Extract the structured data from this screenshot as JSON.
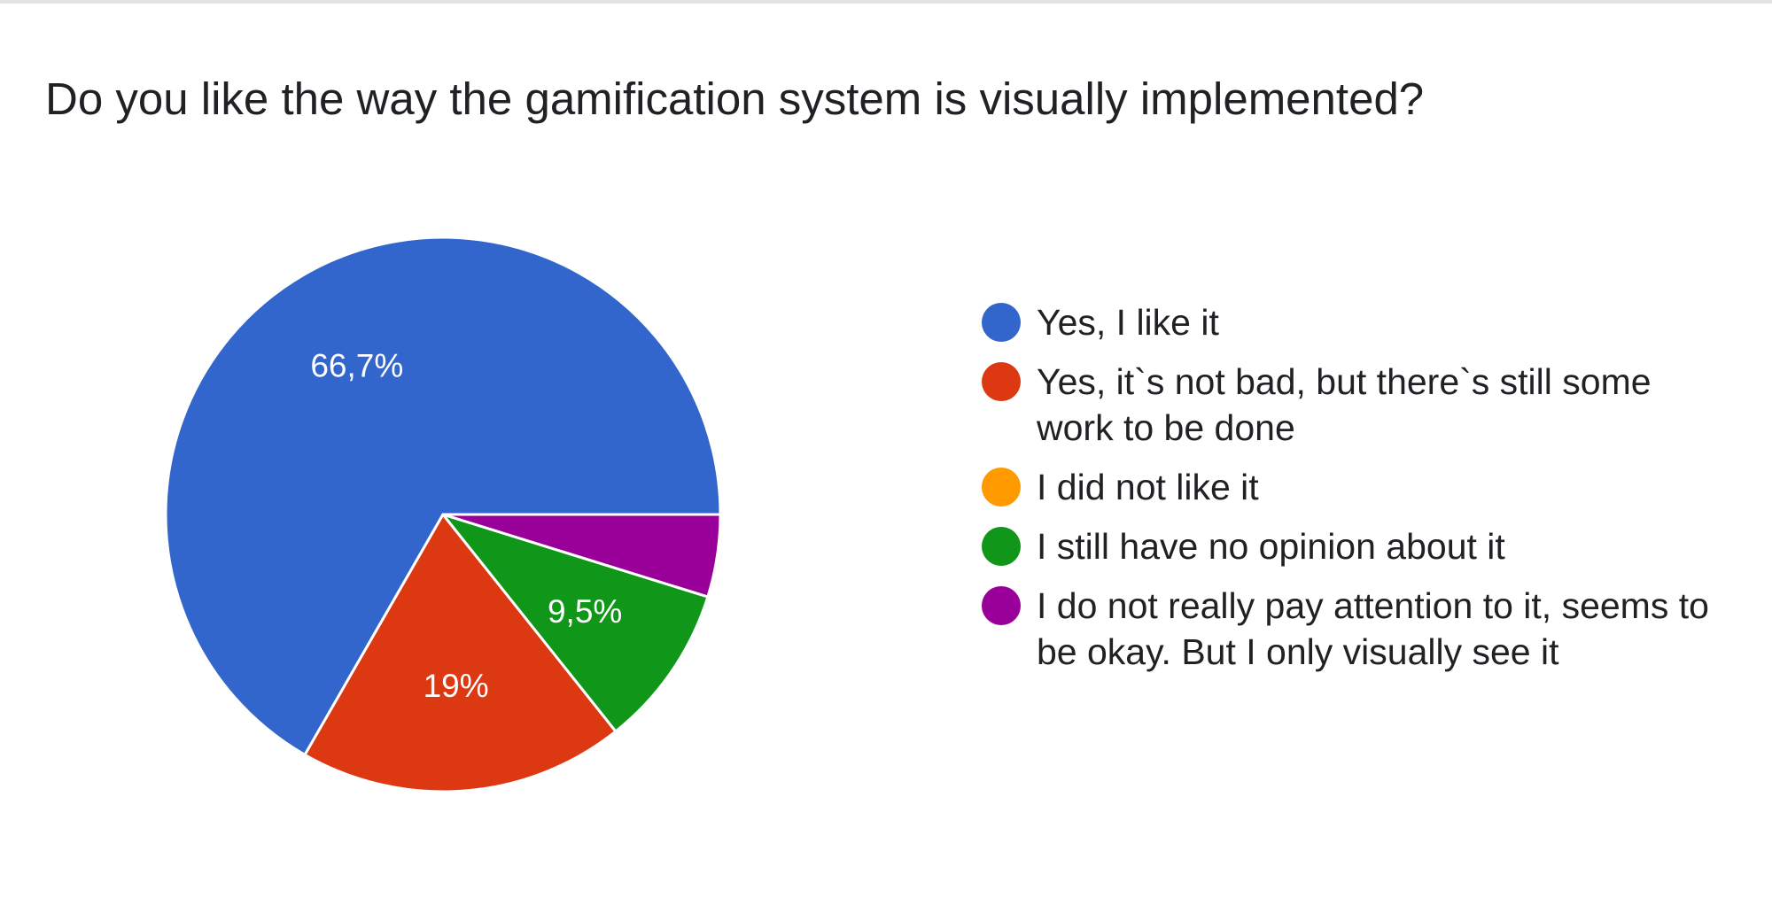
{
  "title": "Do you like the way the gamification system is visually implemented?",
  "chart_data": {
    "type": "pie",
    "title": "Do you like the way the gamification system is visually implemented?",
    "legend_position": "right",
    "start": "3 o'clock, counter-clockwise",
    "slices": [
      {
        "label": "Yes, I like it",
        "value": 66.7,
        "display": "66,7%",
        "color": "#3366cc"
      },
      {
        "label": "Yes, it`s not bad, but there`s still some work to be done",
        "value": 19.0,
        "display": "19%",
        "color": "#dc3912"
      },
      {
        "label": "I did not like it",
        "value": 0,
        "display": "",
        "color": "#ff9900"
      },
      {
        "label": "I still have no opinion about it",
        "value": 9.5,
        "display": "9,5%",
        "color": "#109618"
      },
      {
        "label": "I do not really pay attention to it, seems to be okay. But I only visually see it",
        "value": 4.8,
        "display": "",
        "color": "#990099"
      }
    ]
  }
}
